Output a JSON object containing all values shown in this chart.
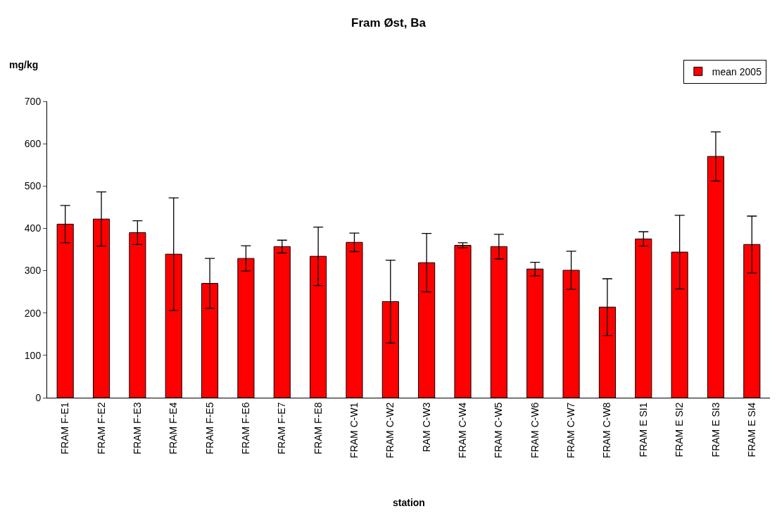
{
  "chart_data": {
    "type": "bar",
    "title": "Fram Øst, Ba",
    "xlabel": "station",
    "ylabel": "mg/kg",
    "categories": [
      "FRAM F-E1",
      "FRAM F-E2",
      "FRAM F-E3",
      "FRAM F-E4",
      "FRAM F-E5",
      "FRAM F-E6",
      "FRAM F-E7",
      "FRAM F-E8",
      "FRAM C-W1",
      "FRAM C-W2",
      "RAM C-W3",
      "FRAM C-W4",
      "FRAM C-W5",
      "FRAM C-W6",
      "FRAM C-W7",
      "FRAM C-W8",
      "FRAM E SI1",
      "FRAM E SI2",
      "FRAM E SI3",
      "FRAM E SI4"
    ],
    "series": [
      {
        "name": "mean 2005",
        "color": "#ff0000",
        "values": [
          410,
          422,
          390,
          339,
          270,
          329,
          357,
          334,
          367,
          227,
          319,
          360,
          357,
          304,
          301,
          214,
          375,
          344,
          570,
          362
        ],
        "errors": [
          44,
          64,
          28,
          133,
          59,
          30,
          15,
          69,
          22,
          98,
          69,
          6,
          29,
          16,
          45,
          67,
          17,
          87,
          58,
          67
        ]
      }
    ],
    "ylim": [
      0,
      700
    ],
    "yticks": [
      0,
      100,
      200,
      300,
      400,
      500,
      600,
      700
    ],
    "legend": "top right"
  }
}
